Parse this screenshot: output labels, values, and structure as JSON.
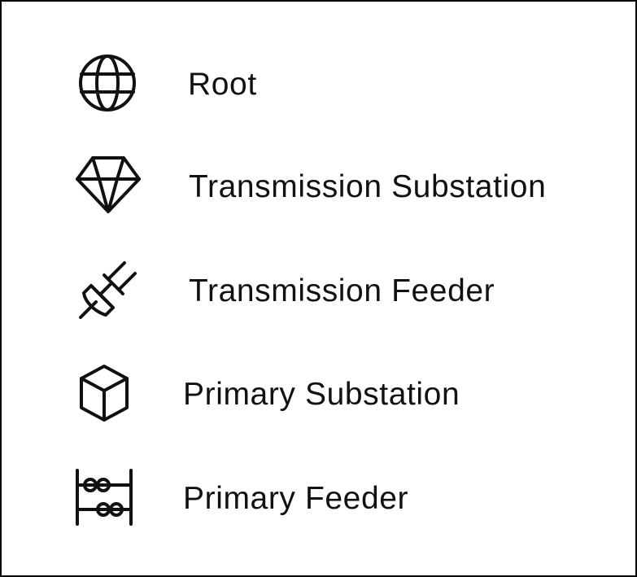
{
  "legend": {
    "items": [
      {
        "label": "Root",
        "icon": "globe-icon"
      },
      {
        "label": "Transmission Substation",
        "icon": "diamond-icon"
      },
      {
        "label": "Transmission Feeder",
        "icon": "plug-icon"
      },
      {
        "label": "Primary Substation",
        "icon": "cube-icon"
      },
      {
        "label": "Primary Feeder",
        "icon": "abacus-icon"
      }
    ]
  },
  "colors": {
    "border": "#000000",
    "stroke": "#111111",
    "text": "#111111",
    "background": "#ffffff"
  }
}
